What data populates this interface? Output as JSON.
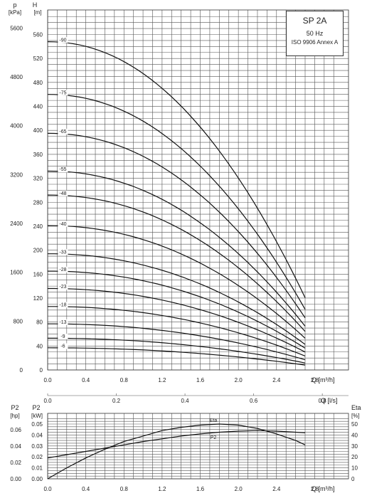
{
  "title_box": {
    "model": "SP 2A",
    "freq": "50 Hz",
    "standard": "ISO 9906 Annex A"
  },
  "axis_labels": {
    "p": "p",
    "p_unit": "[kPa]",
    "H": "H",
    "H_unit": "[m]",
    "q_m3h": "Q [m³/h]",
    "q_ls": "Q [l/s]",
    "p2_hp": "P2",
    "p2_hp_unit": "[hp]",
    "p2_kw": "P2",
    "p2_kw_unit": "[kW]",
    "eta": "Eta",
    "eta_unit": "[%]"
  },
  "chart_data": [
    {
      "type": "line",
      "name": "head",
      "x_m3h_ticks": [
        "0.0",
        "0.4",
        "0.8",
        "1.2",
        "1.6",
        "2.0",
        "2.4",
        "2.8"
      ],
      "x_ls_ticks": [
        "0.0",
        "0.2",
        "0.4",
        "0.6",
        "0.8"
      ],
      "h_ticks": [
        "0",
        "40",
        "80",
        "120",
        "160",
        "200",
        "240",
        "280",
        "320",
        "360",
        "400",
        "440",
        "480",
        "520",
        "560"
      ],
      "p_ticks": [
        "0",
        "800",
        "1600",
        "2400",
        "3200",
        "4000",
        "4800",
        "5600"
      ],
      "xlim": [
        0,
        3.0
      ],
      "ylim": [
        0,
        580
      ],
      "series": [
        {
          "name": "-90",
          "h0": 548
        },
        {
          "name": "-75",
          "h0": 460
        },
        {
          "name": "-65",
          "h0": 395
        },
        {
          "name": "-55",
          "h0": 332
        },
        {
          "name": "-48",
          "h0": 292
        },
        {
          "name": "-40",
          "h0": 241
        },
        {
          "name": "-33",
          "h0": 194
        },
        {
          "name": "-28",
          "h0": 165
        },
        {
          "name": "-23",
          "h0": 136
        },
        {
          "name": "-18",
          "h0": 106
        },
        {
          "name": "-13",
          "h0": 77
        },
        {
          "name": "-9",
          "h0": 53
        },
        {
          "name": "-6",
          "h0": 37
        }
      ],
      "q_end": 2.7
    },
    {
      "type": "line",
      "name": "power_eff",
      "x_ticks": [
        "0.0",
        "0.4",
        "0.8",
        "1.2",
        "1.6",
        "2.0",
        "2.4",
        "2.8"
      ],
      "p2kw_ticks": [
        "0.00",
        "0.01",
        "0.02",
        "0.03",
        "0.04",
        "0.05"
      ],
      "p2hp_ticks": [
        "0.00",
        "0.02",
        "0.04",
        "0.06"
      ],
      "eta_ticks": [
        "0",
        "10",
        "20",
        "30",
        "40",
        "50"
      ],
      "series": [
        {
          "name": "Eta",
          "unit": "%",
          "x": [
            0,
            0.2,
            0.4,
            0.6,
            0.8,
            1.0,
            1.2,
            1.4,
            1.6,
            1.8,
            2.0,
            2.2,
            2.4,
            2.6,
            2.7
          ],
          "y": [
            0,
            10,
            19,
            27,
            34,
            39,
            44,
            47,
            49,
            50,
            49,
            46,
            41,
            35,
            31
          ]
        },
        {
          "name": "P2",
          "unit": "kW",
          "x": [
            0,
            0.2,
            0.4,
            0.6,
            0.8,
            1.0,
            1.2,
            1.4,
            1.6,
            1.8,
            2.0,
            2.2,
            2.4,
            2.6,
            2.7
          ],
          "y": [
            0.019,
            0.022,
            0.025,
            0.028,
            0.031,
            0.034,
            0.0365,
            0.039,
            0.041,
            0.0425,
            0.0435,
            0.044,
            0.0435,
            0.0425,
            0.042
          ]
        }
      ]
    }
  ]
}
